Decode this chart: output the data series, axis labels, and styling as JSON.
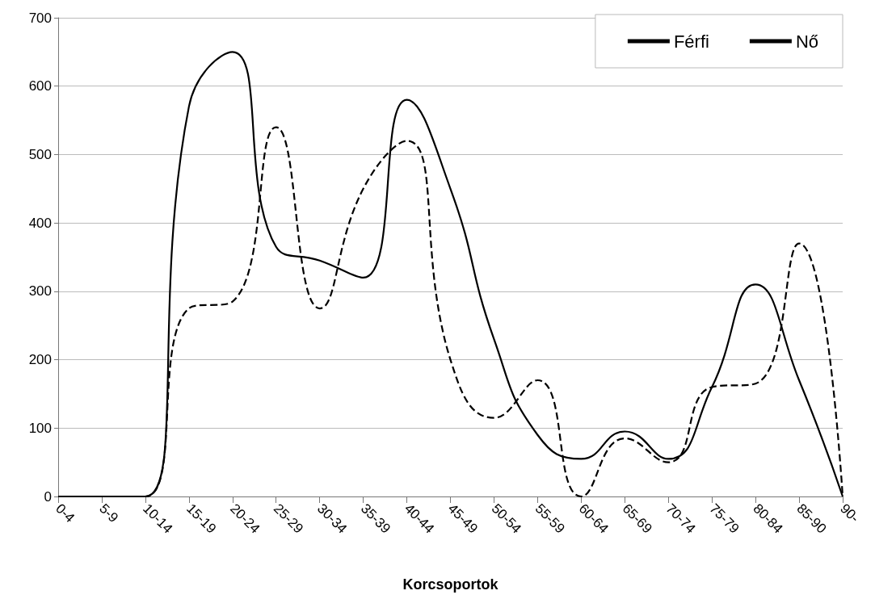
{
  "chart_data": {
    "type": "line",
    "xlabel": "Korcsoportok",
    "categories": [
      "0-4",
      "5-9",
      "10-14",
      "15-19",
      "20-24",
      "25-29",
      "30-34",
      "35-39",
      "40-44",
      "45-49",
      "50-54",
      "55-59",
      "60-64",
      "65-69",
      "70-74",
      "75-79",
      "80-84",
      "85-90",
      "90-"
    ],
    "series": [
      {
        "name": "Férfi",
        "color": "#000000",
        "line_style": "dashed",
        "values": [
          0,
          0,
          0,
          275,
          285,
          540,
          275,
          450,
          520,
          200,
          115,
          170,
          0,
          85,
          50,
          160,
          165,
          370,
          0
        ]
      },
      {
        "name": "Nő",
        "color": "#000000",
        "line_style": "solid",
        "values": [
          0,
          0,
          0,
          570,
          650,
          365,
          345,
          320,
          580,
          450,
          230,
          90,
          55,
          95,
          55,
          160,
          310,
          170,
          0
        ]
      }
    ],
    "ylim": [
      0,
      700
    ],
    "yticks": [
      0,
      100,
      200,
      300,
      400,
      500,
      600,
      700
    ],
    "grid": "y",
    "legend": "top right",
    "marker": "none"
  }
}
